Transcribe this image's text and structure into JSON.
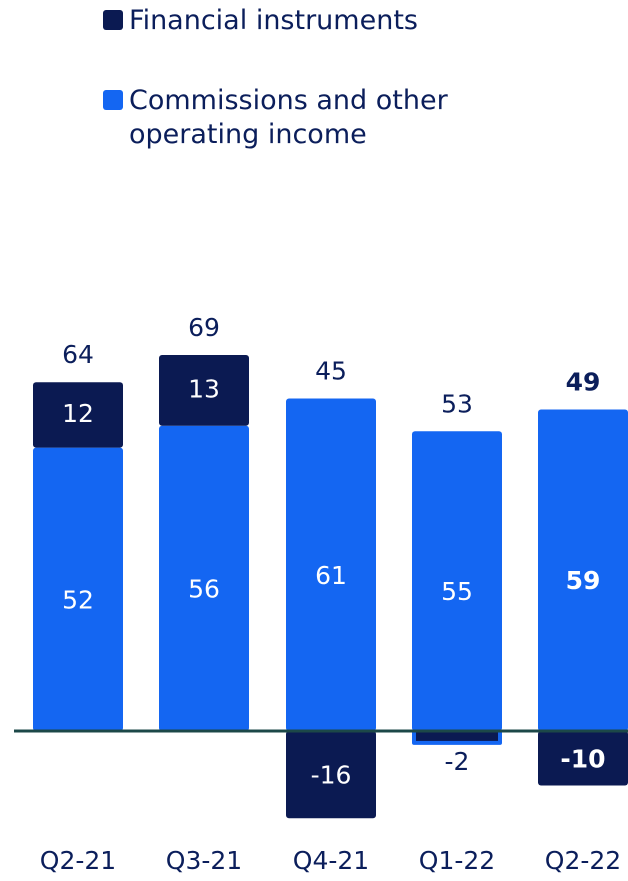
{
  "colors": {
    "commissions": "#1466f2",
    "financial": "#0b1a52",
    "axis": "#1c4848",
    "text_dark": "#0b1e5b",
    "text_light": "#ffffff"
  },
  "chart_data": {
    "type": "bar",
    "stacked": true,
    "categories": [
      "Q2-21",
      "Q3-21",
      "Q4-21",
      "Q1-22",
      "Q2-22"
    ],
    "series": [
      {
        "name": "Commissions and other operating income",
        "values": [
          52,
          56,
          61,
          55,
          59
        ]
      },
      {
        "name": "Financial instruments",
        "values": [
          12,
          13,
          -16,
          -2,
          -10
        ]
      }
    ],
    "totals": [
      64,
      69,
      45,
      53,
      49
    ],
    "highlight_category": "Q2-22",
    "ylim": [
      -22,
      92
    ],
    "grid": false,
    "legend_position": "top-left"
  }
}
